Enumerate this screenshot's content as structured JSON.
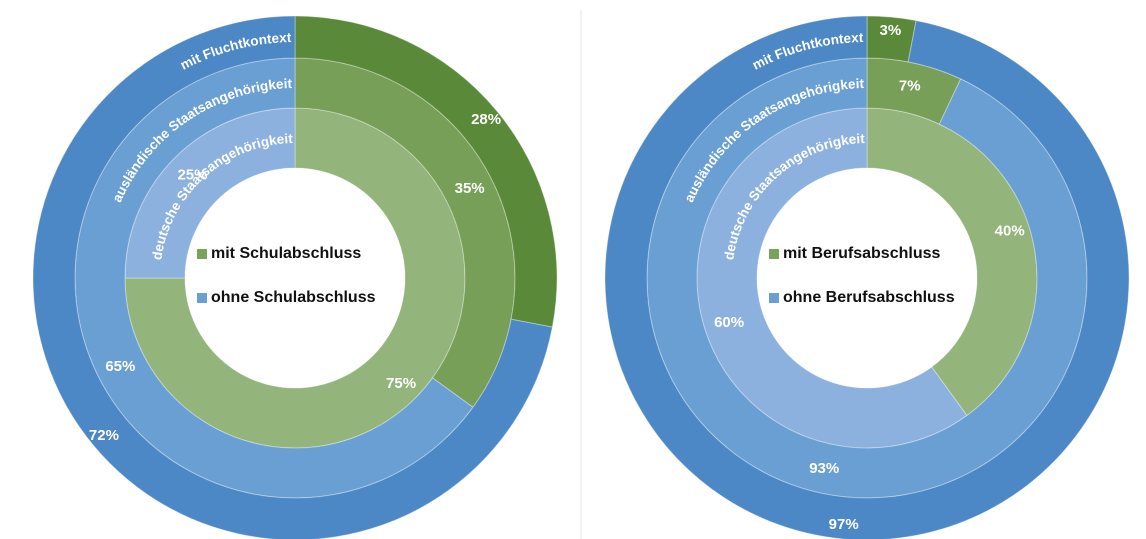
{
  "chart_data": [
    {
      "type": "donut",
      "categories": [
        "mit Schulabschluss",
        "ohne Schulabschluss"
      ],
      "rings": [
        {
          "name": "deutsche Staatsangehörigkeit",
          "values": [
            75,
            25
          ],
          "value_labels": [
            "75%",
            "25%"
          ],
          "colors": [
            "#93b47b",
            "#8db1de"
          ]
        },
        {
          "name": "ausländische Staatsangehörigkeit",
          "values": [
            35,
            65
          ],
          "value_labels": [
            "35%",
            "65%"
          ],
          "colors": [
            "#779f58",
            "#6a9fd4"
          ]
        },
        {
          "name": "mit Fluchtkontext",
          "values": [
            28,
            72
          ],
          "value_labels": [
            "28%",
            "72%"
          ],
          "colors": [
            "#5a8a39",
            "#4c87c6"
          ]
        }
      ],
      "legend_colors": [
        "#78a35a",
        "#6a9fd5"
      ]
    },
    {
      "type": "donut",
      "categories": [
        "mit Berufsabschluss",
        "ohne Berufsabschluss"
      ],
      "rings": [
        {
          "name": "deutsche Staatsangehörigkeit",
          "values": [
            40,
            60
          ],
          "value_labels": [
            "40%",
            "60%"
          ],
          "colors": [
            "#93b47b",
            "#8db1de"
          ]
        },
        {
          "name": "ausländische Staatsangehörigkeit",
          "values": [
            7,
            93
          ],
          "value_labels": [
            "7%",
            "93%"
          ],
          "colors": [
            "#779f58",
            "#6a9fd4"
          ]
        },
        {
          "name": "mit Fluchtkontext",
          "values": [
            3,
            97
          ],
          "value_labels": [
            "3%",
            "97%"
          ],
          "colors": [
            "#5a8a39",
            "#4c87c6"
          ]
        }
      ],
      "legend_colors": [
        "#78a35a",
        "#6a9fd5"
      ]
    }
  ]
}
